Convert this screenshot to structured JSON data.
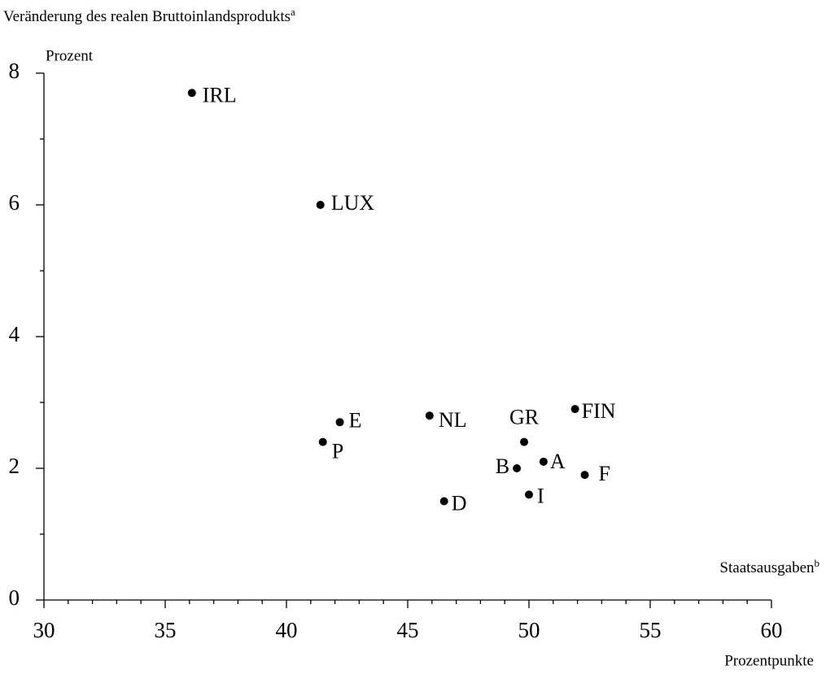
{
  "chart_data": {
    "type": "scatter",
    "title": "Veränderung des realen Bruttoinlandsprodukts",
    "title_note": "a",
    "y_label": "Prozent",
    "x_label": "Staatsausgaben",
    "x_label_note": "b",
    "x_unit": "Prozentpunkte",
    "labels": [
      "IRL",
      "LUX",
      "E",
      "P",
      "NL",
      "D",
      "GR",
      "B",
      "A",
      "I",
      "FIN",
      "F"
    ],
    "x": [
      36.1,
      41.4,
      42.2,
      41.5,
      45.9,
      46.5,
      49.8,
      49.5,
      50.6,
      50.0,
      51.9,
      52.3
    ],
    "values": [
      7.7,
      6.0,
      2.7,
      2.4,
      2.8,
      1.5,
      2.4,
      2.0,
      2.1,
      1.6,
      2.9,
      1.9
    ],
    "color": "#000000",
    "xlim": [
      30,
      60
    ],
    "xticks": [
      30,
      35,
      40,
      45,
      50,
      55,
      60
    ],
    "xminorticks": [
      31,
      32,
      33,
      34,
      36,
      37,
      38,
      39,
      41,
      42,
      43,
      44,
      46,
      47,
      48,
      49,
      51,
      52,
      53,
      54,
      56,
      57,
      58,
      59
    ],
    "ylim": [
      0,
      8
    ],
    "yticks": [
      0,
      2,
      4,
      6,
      8
    ],
    "yminorticks": [
      1,
      3,
      5,
      7
    ]
  }
}
